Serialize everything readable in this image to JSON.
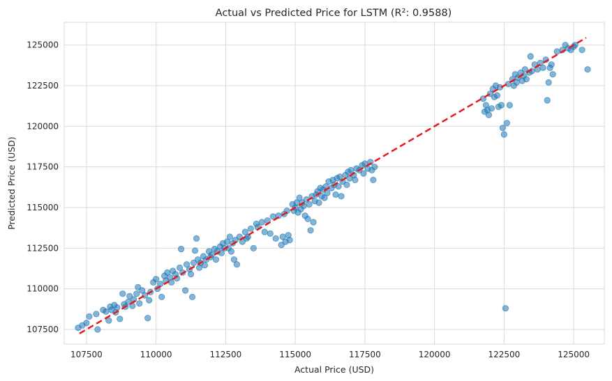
{
  "chart_data": {
    "type": "scatter",
    "title": "Actual vs Predicted Price for LSTM (R²: 0.9588)",
    "xlabel": "Actual Price (USD)",
    "ylabel": "Predicted Price (USD)",
    "xlim": [
      106700,
      126100
    ],
    "ylim": [
      106600,
      126400
    ],
    "xticks": [
      107500,
      110000,
      112500,
      115000,
      117500,
      120000,
      122500,
      125000
    ],
    "yticks": [
      107500,
      110000,
      112500,
      115000,
      117500,
      120000,
      122500,
      125000
    ],
    "xtick_labels": [
      "107500",
      "110000",
      "112500",
      "115000",
      "117500",
      "120000",
      "122500",
      "125000"
    ],
    "ytick_labels": [
      "107500",
      "110000",
      "112500",
      "115000",
      "117500",
      "120000",
      "122500",
      "125000"
    ],
    "grid": true,
    "point_color": "#1f77b4",
    "point_alpha": 0.55,
    "reference_line": {
      "x": [
        107250,
        125450
      ],
      "y": [
        107250,
        125450
      ],
      "color": "#e8191d",
      "style": "dashed"
    },
    "points": [
      [
        107200,
        107600
      ],
      [
        107350,
        107750
      ],
      [
        107500,
        107900
      ],
      [
        107600,
        108300
      ],
      [
        107850,
        108450
      ],
      [
        107900,
        107500
      ],
      [
        108100,
        108700
      ],
      [
        108200,
        108600
      ],
      [
        108300,
        108050
      ],
      [
        108350,
        108900
      ],
      [
        108400,
        108700
      ],
      [
        108500,
        109000
      ],
      [
        108550,
        108550
      ],
      [
        108600,
        108850
      ],
      [
        108700,
        108150
      ],
      [
        108800,
        109700
      ],
      [
        108850,
        109050
      ],
      [
        108900,
        108900
      ],
      [
        109000,
        109200
      ],
      [
        109050,
        109550
      ],
      [
        109150,
        108950
      ],
      [
        109200,
        109350
      ],
      [
        109300,
        109700
      ],
      [
        109350,
        110100
      ],
      [
        109400,
        109100
      ],
      [
        109500,
        109900
      ],
      [
        109600,
        109600
      ],
      [
        109700,
        108200
      ],
      [
        109750,
        109300
      ],
      [
        109800,
        109800
      ],
      [
        109900,
        110400
      ],
      [
        110000,
        110600
      ],
      [
        110050,
        110000
      ],
      [
        110150,
        110300
      ],
      [
        110200,
        109500
      ],
      [
        110300,
        110800
      ],
      [
        110350,
        110500
      ],
      [
        110400,
        111000
      ],
      [
        110500,
        110700
      ],
      [
        110550,
        110400
      ],
      [
        110600,
        111100
      ],
      [
        110700,
        110900
      ],
      [
        110750,
        110650
      ],
      [
        110850,
        111300
      ],
      [
        110900,
        112450
      ],
      [
        110950,
        111000
      ],
      [
        111050,
        109900
      ],
      [
        111100,
        111500
      ],
      [
        111200,
        111200
      ],
      [
        111250,
        110900
      ],
      [
        111300,
        109500
      ],
      [
        111350,
        111600
      ],
      [
        111400,
        112350
      ],
      [
        111450,
        113100
      ],
      [
        111500,
        111800
      ],
      [
        111550,
        111300
      ],
      [
        111600,
        111600
      ],
      [
        111700,
        112000
      ],
      [
        111750,
        111450
      ],
      [
        111800,
        111800
      ],
      [
        111900,
        112300
      ],
      [
        111950,
        111950
      ],
      [
        112000,
        112100
      ],
      [
        112100,
        112450
      ],
      [
        112150,
        111800
      ],
      [
        112200,
        112300
      ],
      [
        112300,
        112600
      ],
      [
        112350,
        112200
      ],
      [
        112400,
        112800
      ],
      [
        112450,
        112500
      ],
      [
        112550,
        112900
      ],
      [
        112600,
        112500
      ],
      [
        112650,
        113200
      ],
      [
        112700,
        112300
      ],
      [
        112750,
        112800
      ],
      [
        112800,
        111800
      ],
      [
        112850,
        113000
      ],
      [
        112900,
        111500
      ],
      [
        113000,
        113200
      ],
      [
        113100,
        112900
      ],
      [
        113200,
        113500
      ],
      [
        113250,
        113100
      ],
      [
        113300,
        113200
      ],
      [
        113400,
        113700
      ],
      [
        113500,
        112500
      ],
      [
        113600,
        114000
      ],
      [
        113650,
        113800
      ],
      [
        113800,
        114100
      ],
      [
        113900,
        113500
      ],
      [
        114000,
        114200
      ],
      [
        114100,
        113400
      ],
      [
        114200,
        114450
      ],
      [
        114300,
        113100
      ],
      [
        114400,
        114500
      ],
      [
        114500,
        112700
      ],
      [
        114550,
        113200
      ],
      [
        114600,
        114600
      ],
      [
        114650,
        112900
      ],
      [
        114700,
        114800
      ],
      [
        114750,
        113300
      ],
      [
        114800,
        113000
      ],
      [
        114900,
        115200
      ],
      [
        114950,
        114800
      ],
      [
        115000,
        115000
      ],
      [
        115050,
        115300
      ],
      [
        115100,
        114700
      ],
      [
        115150,
        115600
      ],
      [
        115200,
        114900
      ],
      [
        115250,
        115300
      ],
      [
        115300,
        115100
      ],
      [
        115350,
        114500
      ],
      [
        115400,
        115500
      ],
      [
        115450,
        114300
      ],
      [
        115500,
        115200
      ],
      [
        115550,
        113600
      ],
      [
        115600,
        115700
      ],
      [
        115650,
        114100
      ],
      [
        115700,
        115400
      ],
      [
        115750,
        115800
      ],
      [
        115800,
        116000
      ],
      [
        115850,
        115300
      ],
      [
        115900,
        116200
      ],
      [
        115950,
        115700
      ],
      [
        116000,
        116100
      ],
      [
        116050,
        115600
      ],
      [
        116100,
        116300
      ],
      [
        116150,
        115900
      ],
      [
        116200,
        116600
      ],
      [
        116300,
        116200
      ],
      [
        116350,
        116700
      ],
      [
        116400,
        116400
      ],
      [
        116450,
        115800
      ],
      [
        116500,
        116800
      ],
      [
        116550,
        116300
      ],
      [
        116600,
        116900
      ],
      [
        116650,
        115700
      ],
      [
        116700,
        116600
      ],
      [
        116800,
        117000
      ],
      [
        116850,
        116400
      ],
      [
        116900,
        117200
      ],
      [
        116950,
        116800
      ],
      [
        117000,
        117300
      ],
      [
        117100,
        117000
      ],
      [
        117150,
        116700
      ],
      [
        117200,
        117400
      ],
      [
        117300,
        117300
      ],
      [
        117400,
        117600
      ],
      [
        117450,
        117100
      ],
      [
        117500,
        117700
      ],
      [
        117600,
        117400
      ],
      [
        117700,
        117800
      ],
      [
        117750,
        117300
      ],
      [
        117800,
        116700
      ],
      [
        117850,
        117500
      ],
      [
        121750,
        121700
      ],
      [
        121800,
        120900
      ],
      [
        121850,
        121300
      ],
      [
        121900,
        121000
      ],
      [
        121950,
        120700
      ],
      [
        122000,
        122000
      ],
      [
        122050,
        121100
      ],
      [
        122100,
        122300
      ],
      [
        122150,
        121800
      ],
      [
        122200,
        122500
      ],
      [
        122250,
        121900
      ],
      [
        122300,
        121200
      ],
      [
        122350,
        122400
      ],
      [
        122400,
        121300
      ],
      [
        122450,
        119900
      ],
      [
        122500,
        119500
      ],
      [
        122550,
        108800
      ],
      [
        122600,
        120200
      ],
      [
        122650,
        122600
      ],
      [
        122700,
        121300
      ],
      [
        122800,
        122900
      ],
      [
        122850,
        122500
      ],
      [
        122900,
        123200
      ],
      [
        122950,
        122700
      ],
      [
        123000,
        123000
      ],
      [
        123100,
        123300
      ],
      [
        123150,
        122800
      ],
      [
        123200,
        123100
      ],
      [
        123250,
        123500
      ],
      [
        123300,
        122900
      ],
      [
        123400,
        123300
      ],
      [
        123450,
        124300
      ],
      [
        123500,
        123400
      ],
      [
        123600,
        123800
      ],
      [
        123700,
        123500
      ],
      [
        123800,
        123900
      ],
      [
        123900,
        123600
      ],
      [
        124000,
        124100
      ],
      [
        124050,
        121600
      ],
      [
        124100,
        122700
      ],
      [
        124150,
        123600
      ],
      [
        124200,
        123800
      ],
      [
        124250,
        123200
      ],
      [
        124400,
        124600
      ],
      [
        124600,
        124700
      ],
      [
        124700,
        125000
      ],
      [
        124800,
        124800
      ],
      [
        124900,
        124700
      ],
      [
        125000,
        124900
      ],
      [
        125050,
        125000
      ],
      [
        125300,
        124700
      ],
      [
        125500,
        123500
      ]
    ]
  }
}
